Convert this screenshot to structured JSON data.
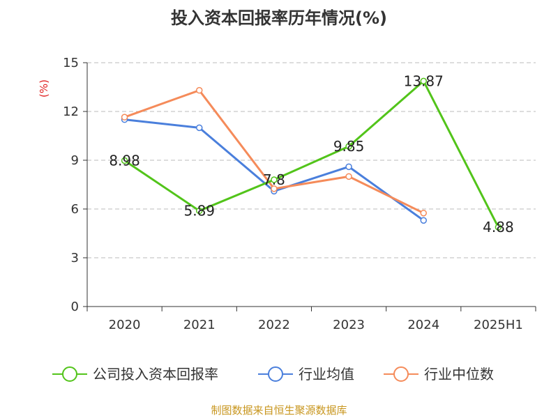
{
  "title": "投入资本回报率历年情况(%)",
  "source": "制图数据来自恒生聚源数据库",
  "chart_data": {
    "type": "line",
    "title": "投入资本回报率历年情况(%)",
    "ylabel": "(%)",
    "xlabel": "",
    "categories": [
      "2020",
      "2021",
      "2022",
      "2023",
      "2024",
      "2025H1"
    ],
    "ylim": [
      0,
      15
    ],
    "yticks": [
      0,
      3,
      6,
      9,
      12,
      15
    ],
    "grid": "horizontal dashed",
    "legend_position": "bottom",
    "series": [
      {
        "name": "公司投入资本回报率",
        "color": "#52c41a",
        "values": [
          8.98,
          5.89,
          7.8,
          9.85,
          13.87,
          4.88
        ],
        "labels": [
          "8.98",
          "5.89",
          "7.8",
          "9.85",
          "13.87",
          "4.88"
        ]
      },
      {
        "name": "行业均值",
        "color": "#4a7fdc",
        "values": [
          11.5,
          11.0,
          7.1,
          8.6,
          5.3,
          null
        ]
      },
      {
        "name": "行业中位数",
        "color": "#f58b5a",
        "values": [
          11.65,
          13.3,
          7.25,
          8.0,
          5.75,
          null
        ]
      }
    ]
  }
}
